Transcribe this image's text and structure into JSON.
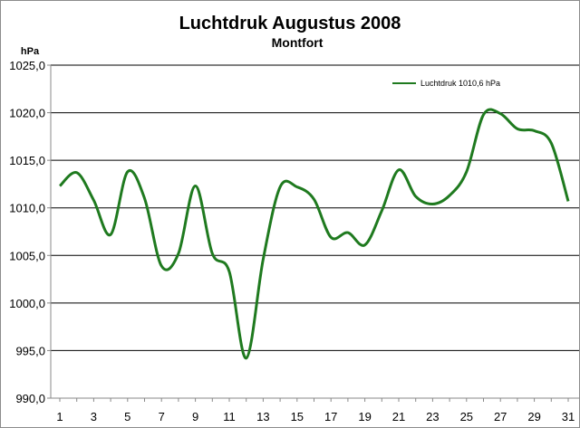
{
  "chart_data": {
    "type": "line",
    "title": "Luchtdruk Augustus 2008",
    "subtitle": "Montfort",
    "ylabel": "hPa",
    "xlabel": "",
    "ylim": [
      990,
      1025
    ],
    "y_ticks": [
      "990,0",
      "995,0",
      "1000,0",
      "1005,0",
      "1010,0",
      "1015,0",
      "1020,0",
      "1025,0"
    ],
    "y_tick_values": [
      990,
      995,
      1000,
      1005,
      1010,
      1015,
      1020,
      1025
    ],
    "x_ticks": [
      "1",
      "3",
      "5",
      "7",
      "9",
      "11",
      "13",
      "15",
      "17",
      "19",
      "21",
      "23",
      "25",
      "27",
      "29",
      "31"
    ],
    "x_tick_values": [
      1,
      3,
      5,
      7,
      9,
      11,
      13,
      15,
      17,
      19,
      21,
      23,
      25,
      27,
      29,
      31
    ],
    "xlim": [
      1,
      31
    ],
    "grid": "horizontal",
    "legend_position": "top-right",
    "colors": {
      "series": "#1f7a1f",
      "grid": "#000000",
      "axis": "#888888"
    },
    "series": [
      {
        "name": "Luchtdruk 1010,6  hPa",
        "x": [
          1,
          2,
          3,
          4,
          5,
          6,
          7,
          8,
          9,
          10,
          11,
          12,
          13,
          14,
          15,
          16,
          17,
          18,
          19,
          20,
          21,
          22,
          23,
          24,
          25,
          26,
          27,
          28,
          29,
          30,
          31
        ],
        "values": [
          1012.3,
          1013.7,
          1010.8,
          1007.2,
          1013.8,
          1011.0,
          1003.9,
          1005.2,
          1012.3,
          1005.2,
          1003.3,
          994.2,
          1004.6,
          1012.2,
          1012.2,
          1010.9,
          1006.9,
          1007.4,
          1006.1,
          1009.7,
          1014.0,
          1011.2,
          1010.4,
          1011.3,
          1013.8,
          1019.8,
          1019.9,
          1018.3,
          1018.1,
          1016.8,
          1010.7
        ]
      }
    ]
  }
}
